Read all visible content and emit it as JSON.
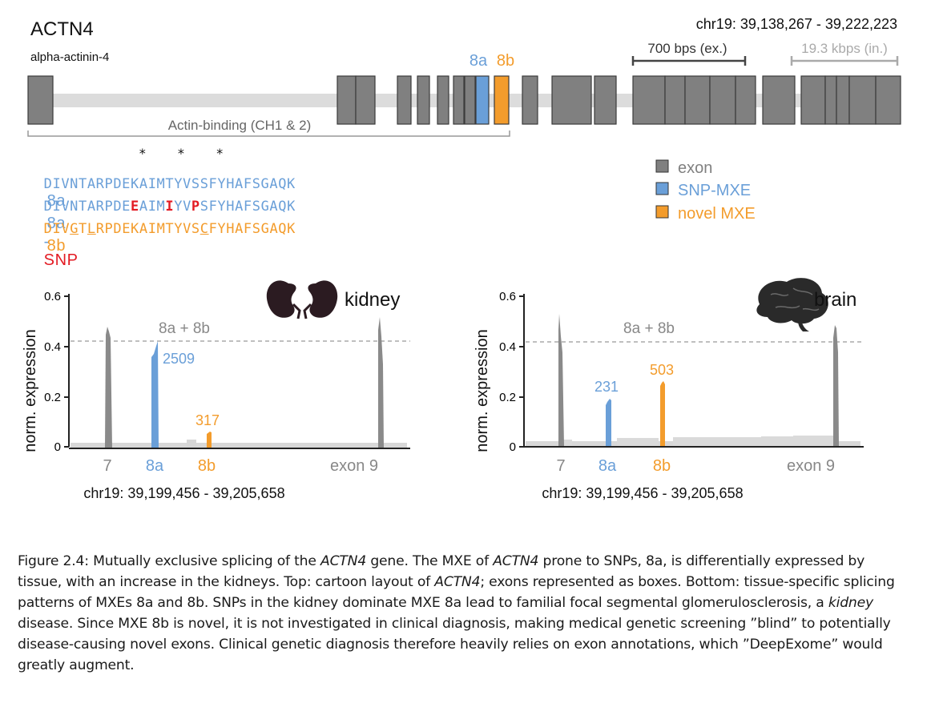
{
  "gene": {
    "name": "ACTN4",
    "protein": "alpha-actinin-4",
    "coords": "chr19: 39,138,267 - 39,222,223",
    "scale_exon": "700 bps (ex.)",
    "scale_intron": "19.3 kbps (in.)",
    "domain_label": "Actin-binding (CH1 & 2)",
    "mxe_a_label": "8a",
    "mxe_b_label": "8b",
    "colors": {
      "exon": "#808080",
      "snp_mxe": "#6a9fd8",
      "novel_mxe": "#f39c2c",
      "snp": "#e31b23",
      "intron": "#dcdcdc"
    }
  },
  "sequences": {
    "asterisks": "*    *    *",
    "seq_8a": "DIVNTARPDEKAIMTYVSSFYHAFSGAQK",
    "seq_8a_label": "8a",
    "snp_part1": "DIVNTARPDE",
    "snp_e": "E",
    "snp_part2": "AIM",
    "snp_i": "I",
    "snp_part3": "YV",
    "snp_p": "P",
    "snp_part4": "SFYHAFSGAQK",
    "seq_snp_label": "8a",
    "seq_snp_dash": "-",
    "seq_snp_suffix": "SNP",
    "b_part1": "DIV",
    "b_u1": "G",
    "b_part2": "T",
    "b_u2": "L",
    "b_part3": "RPDEKAIMTYVS",
    "b_u3": "C",
    "b_part4": "FYHAFSGAQK",
    "seq_8b_label": "8b"
  },
  "legend": [
    {
      "label": "exon",
      "color": "#808080"
    },
    {
      "label": "SNP-MXE",
      "color": "#6a9fd8"
    },
    {
      "label": "novel MXE",
      "color": "#f39c2c"
    }
  ],
  "panels": [
    {
      "tissue": "kidney",
      "ylabel": "norm. expression",
      "yticks": [
        "0",
        "0.2",
        "0.4",
        "0.6"
      ],
      "dashed_label": "8a + 8b",
      "count_a": "2509",
      "count_b": "317",
      "xticks": [
        "7",
        "8a",
        "8b",
        "exon 9"
      ],
      "coords": "chr19: 39,199,456 - 39,205,658"
    },
    {
      "tissue": "brain",
      "ylabel": "norm. expression",
      "yticks": [
        "0",
        "0.2",
        "0.4",
        "0.6"
      ],
      "dashed_label": "8a + 8b",
      "count_a": "231",
      "count_b": "503",
      "xticks": [
        "7",
        "8a",
        "8b",
        "exon 9"
      ],
      "coords": "chr19: 39,199,456 - 39,205,658"
    }
  ],
  "caption": {
    "p1": "Figure 2.4: Mutually exclusive splicing of the ",
    "i1": "ACTN4",
    "p2": " gene. The MXE of ",
    "i2": "ACTN4",
    "p3": " prone to SNPs, 8a, is differentially expressed by tissue, with an increase in the kidneys. Top: cartoon layout of ",
    "i3": "ACTN4",
    "p4": "; exons represented as boxes. Bottom: tissue-specific splicing patterns of MXEs 8a and 8b. SNPs in the kidney dominate MXE 8a lead to familial focal segmental glomerulosclerosis, a ",
    "i4": "kidney",
    "p5": " disease. Since MXE 8b is novel, it is not investigated in clinical diagnosis, making medical genetic screening ”blind” to potentially disease-causing novel exons. Clinical genetic diagnosis therefore heavily relies on exon annotations, which ”DeepExome” would greatly augment."
  }
}
